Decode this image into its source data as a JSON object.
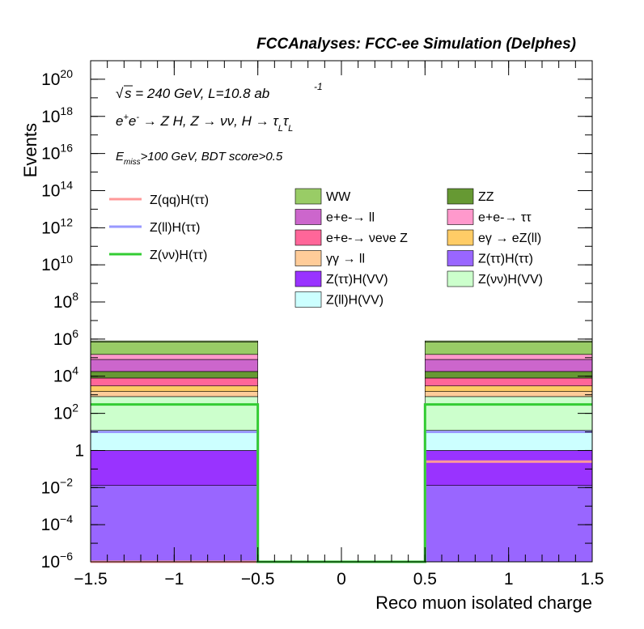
{
  "header": {
    "title": "FCCAnalyses: FCC-ee Simulation (Delphes)"
  },
  "annotations": {
    "energy_sqrt": "s",
    "energy_rest": " = 240 GeV, L=10.8 ab",
    "lumi_exp": "-1",
    "process": {
      "a": "e",
      "a_sup": "+",
      "b": "e",
      "b_sup": "-",
      "c": " → Z H, Z  → νν, H  → τ",
      "c_sub": "L",
      "d": "τ",
      "d_sub": "L"
    },
    "cut_e": "E",
    "cut_sub": "miss",
    "cut_rest": ">100 GeV, BDT score>0.5"
  },
  "chart_data": {
    "type": "bar",
    "stacked": true,
    "y_scale": "log",
    "xlabel": "Reco muon isolated charge",
    "ylabel": "Events",
    "xlim": [
      -1.5,
      1.5
    ],
    "ylim": [
      1e-06,
      1e+21
    ],
    "x_ticks": [
      "−1.5",
      "−1",
      "−0.5",
      "0",
      "0.5",
      "1",
      "1.5"
    ],
    "x_tick_values": [
      -1.5,
      -1,
      -0.5,
      0,
      0.5,
      1,
      1.5
    ],
    "y_ticks": [
      {
        "value": 1e-06,
        "base": "10",
        "exp": "−6"
      },
      {
        "value": 0.0001,
        "base": "10",
        "exp": "−4"
      },
      {
        "value": 0.01,
        "base": "10",
        "exp": "−2"
      },
      {
        "value": 1,
        "base": "1",
        "exp": ""
      },
      {
        "value": 100.0,
        "base": "10",
        "exp": "2"
      },
      {
        "value": 10000.0,
        "base": "10",
        "exp": "4"
      },
      {
        "value": 1000000.0,
        "base": "10",
        "exp": "6"
      },
      {
        "value": 100000000.0,
        "base": "10",
        "exp": "8"
      },
      {
        "value": 10000000000.0,
        "base": "10",
        "exp": "10"
      },
      {
        "value": 1000000000000.0,
        "base": "10",
        "exp": "12"
      },
      {
        "value": 100000000000000.0,
        "base": "10",
        "exp": "14"
      },
      {
        "value": 1e+16,
        "base": "10",
        "exp": "16"
      },
      {
        "value": 1e+18,
        "base": "10",
        "exp": "18"
      },
      {
        "value": 1e+20,
        "base": "10",
        "exp": "20"
      }
    ],
    "bins": [
      {
        "low": -1.5,
        "high": -0.5
      },
      {
        "low": -0.5,
        "high": 0.5
      },
      {
        "low": 0.5,
        "high": 1.5
      }
    ],
    "stack_boundaries": [
      [
        1e-06,
        0.013,
        1.0,
        12,
        800,
        1500,
        3000,
        8000,
        18000,
        80000,
        150000,
        700000,
        800000
      ],
      [
        1e-06,
        1e-06,
        1e-06,
        1e-06,
        1e-06,
        1e-06,
        1e-06,
        1e-06,
        1e-06,
        1e-06,
        1e-06,
        1e-06,
        1e-06
      ],
      [
        1e-06,
        0.013,
        1.0,
        12,
        800,
        1500,
        3000,
        8000,
        18000,
        80000,
        150000,
        700000,
        800000
      ]
    ],
    "stack": [
      {
        "name": "Z(ττ)H(ττ)",
        "color": "#9966ff"
      },
      {
        "name": "Z(ττ)H(VV)",
        "color": "#9933ff"
      },
      {
        "name": "Z(ll)H(VV)",
        "color": "#ccffff"
      },
      {
        "name": "Z(νν)H(VV)",
        "color": "#ccffcc"
      },
      {
        "name": "γγ → ll",
        "color": "#ffcc99"
      },
      {
        "name": "eγ → eZ(ll)",
        "color": "#ffcc66"
      },
      {
        "name": "e+e-→ νeνe Z",
        "color": "#ff6699"
      },
      {
        "name": "ZZ",
        "color": "#669933"
      },
      {
        "name": "e+e-→ ll",
        "color": "#cc66cc"
      },
      {
        "name": "e+e-→ ττ",
        "color": "#ff99cc"
      },
      {
        "name": "WW",
        "color": "#99cc66"
      },
      {
        "name": "",
        "color": "#99cc66"
      }
    ],
    "signals": [
      {
        "name": "Z(qq)H(ττ)",
        "color": "#ff9999",
        "values": [
          1e-06,
          1e-06,
          0.25
        ]
      },
      {
        "name": "Z(ll)H(ττ)",
        "color": "#9999ff",
        "values": [
          10,
          1e-06,
          10
        ]
      },
      {
        "name": "Z(νν)H(ττ)",
        "color": "#33cc33",
        "values": [
          300,
          1e-06,
          300
        ]
      }
    ],
    "legend": {
      "signals": [
        {
          "label": "Z(qq)H(ττ)",
          "color": "#ff9999"
        },
        {
          "label": "Z(ll)H(ττ)",
          "color": "#9999ff"
        },
        {
          "label": "Z(νν)H(ττ)",
          "color": "#33cc33"
        }
      ],
      "backgrounds": [
        {
          "label": "WW",
          "color": "#99cc66"
        },
        {
          "label": "ZZ",
          "color": "#669933"
        },
        {
          "label": "e+e-→ ll",
          "color": "#cc66cc"
        },
        {
          "label": "e+e-→ ττ",
          "color": "#ff99cc"
        },
        {
          "label": "e+e-→ νeνe Z",
          "color": "#ff6699"
        },
        {
          "label": "eγ → eZ(ll)",
          "color": "#ffcc66"
        },
        {
          "label": "γγ → ll",
          "color": "#ffcc99"
        },
        {
          "label": "Z(ττ)H(ττ)",
          "color": "#9966ff"
        },
        {
          "label": "Z(ττ)H(VV)",
          "color": "#9933ff"
        },
        {
          "label": "Z(νν)H(VV)",
          "color": "#ccffcc"
        },
        {
          "label": "Z(ll)H(VV)",
          "color": "#ccffff"
        }
      ]
    }
  }
}
